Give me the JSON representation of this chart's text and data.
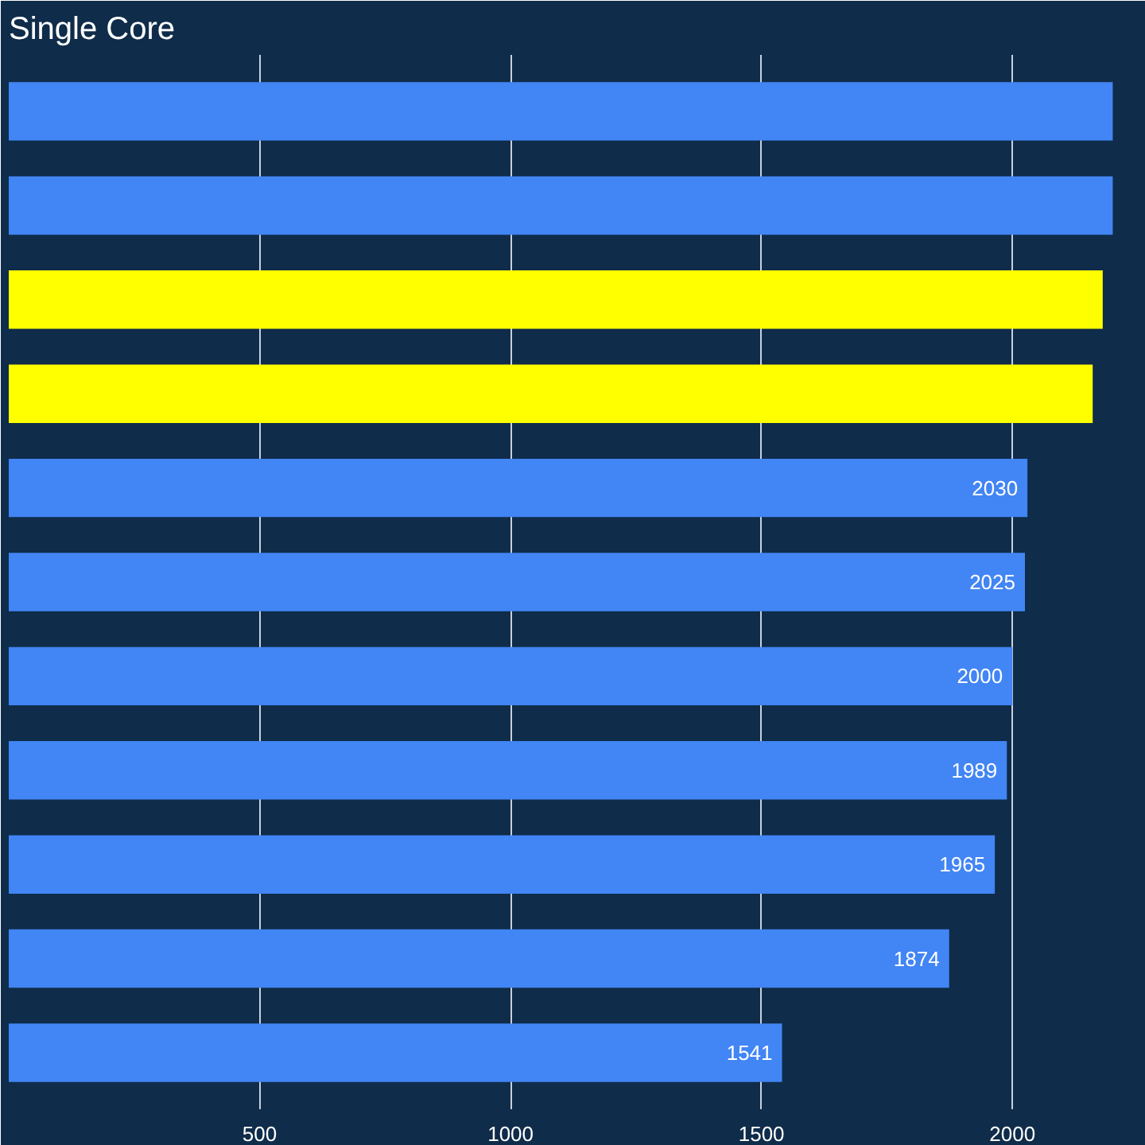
{
  "chart_data": {
    "type": "bar",
    "orientation": "horizontal",
    "title": "Single Core",
    "categories": [
      null,
      null,
      null,
      null,
      null,
      null,
      null,
      null,
      null,
      null,
      null
    ],
    "values": [
      2200,
      2200,
      2180,
      2160,
      2030,
      2025,
      2000,
      1989,
      1965,
      1874,
      1541
    ],
    "colors": [
      "#4285f4",
      "#4285f4",
      "#ffff00",
      "#ffff00",
      "#4285f4",
      "#4285f4",
      "#4285f4",
      "#4285f4",
      "#4285f4",
      "#4285f4",
      "#4285f4"
    ],
    "value_labels": [
      null,
      null,
      null,
      null,
      "2030",
      "2025",
      "2000",
      "1989",
      "1965",
      "1874",
      "1541"
    ],
    "xlim": [
      0,
      2250
    ],
    "xticks": [
      500,
      1000,
      1500,
      2000
    ],
    "grid": "x"
  }
}
